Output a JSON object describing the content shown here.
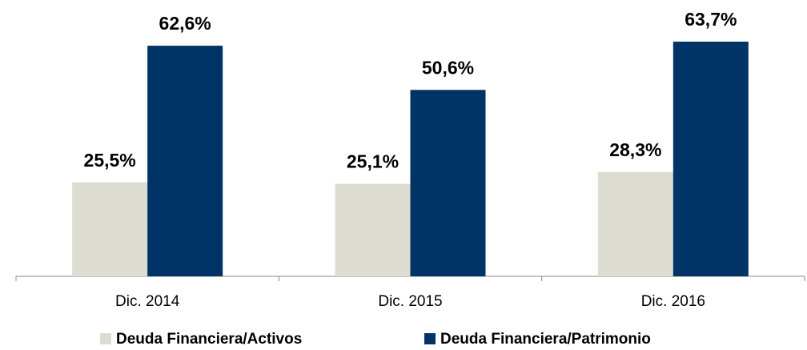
{
  "chart_data": {
    "type": "bar",
    "categories": [
      "Dic. 2014",
      "Dic. 2015",
      "Dic. 2016"
    ],
    "series": [
      {
        "name": "Deuda Financiera/Activos",
        "color": "#dcdcd0",
        "values": [
          25.5,
          25.1,
          28.3
        ],
        "value_labels": [
          "25,5%",
          "25,1%",
          "28,3%"
        ]
      },
      {
        "name": "Deuda Financiera/Patrimonio",
        "color": "#003366",
        "values": [
          62.6,
          50.6,
          63.7
        ],
        "value_labels": [
          "62,6%",
          "50,6%",
          "63,7%"
        ]
      }
    ]
  }
}
